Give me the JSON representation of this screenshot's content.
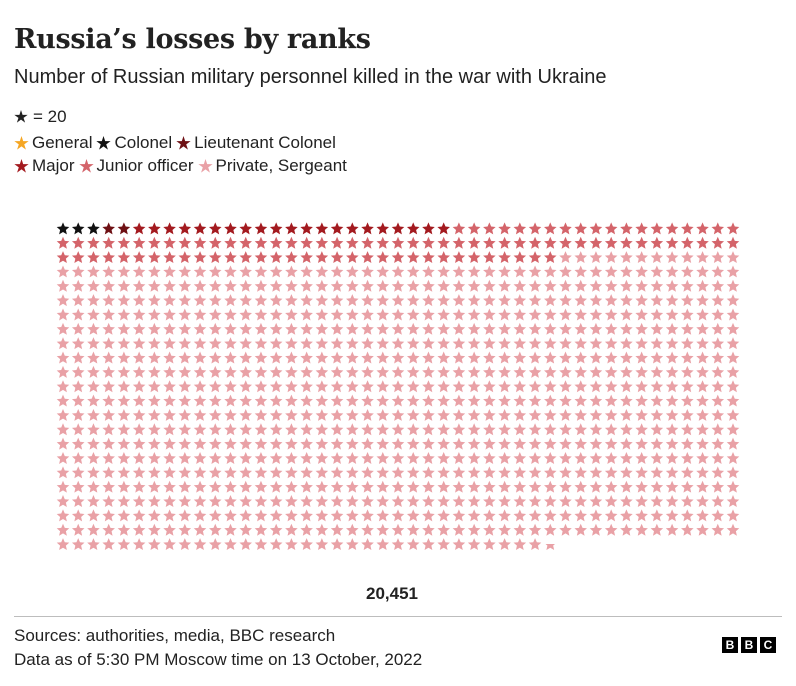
{
  "title": "Russia’s losses by ranks",
  "subtitle": "Number of Russian military personnel killed in the war with Ukraine",
  "scale": {
    "icon": "star-icon",
    "label": "= 20"
  },
  "legend": {
    "row1": [
      {
        "label": "General",
        "color": "#f5a623"
      },
      {
        "label": "Colonel",
        "color": "#111111"
      },
      {
        "label": "Lieutenant Colonel",
        "color": "#6e1014"
      }
    ],
    "row2": [
      {
        "label": "Major",
        "color": "#a31a1f"
      },
      {
        "label": "Junior officer",
        "color": "#d4646a"
      },
      {
        "label": "Private, Sergeant",
        "color": "#e9a1a6"
      }
    ]
  },
  "chart_data": {
    "type": "pictogram",
    "unit_per_icon": 20,
    "columns": 45,
    "total": 20451,
    "total_label": "20,451",
    "series": [
      {
        "name": "General",
        "icons": 0,
        "color": "#f5a623"
      },
      {
        "name": "Colonel",
        "icons": 3,
        "color": "#111111"
      },
      {
        "name": "Lieutenant Colonel",
        "icons": 2,
        "color": "#6e1014"
      },
      {
        "name": "Major",
        "icons": 21,
        "color": "#a31a1f"
      },
      {
        "name": "Junior officer",
        "icons": 97,
        "color": "#d4646a"
      },
      {
        "name": "Private, Sergeant",
        "icons": 899,
        "color": "#e9a1a6"
      }
    ]
  },
  "source": {
    "line1": "Sources: authorities, media, BBC research",
    "line2": "Data as of 5:30 PM Moscow time on 13 October, 2022"
  },
  "logo": [
    "B",
    "B",
    "C"
  ]
}
